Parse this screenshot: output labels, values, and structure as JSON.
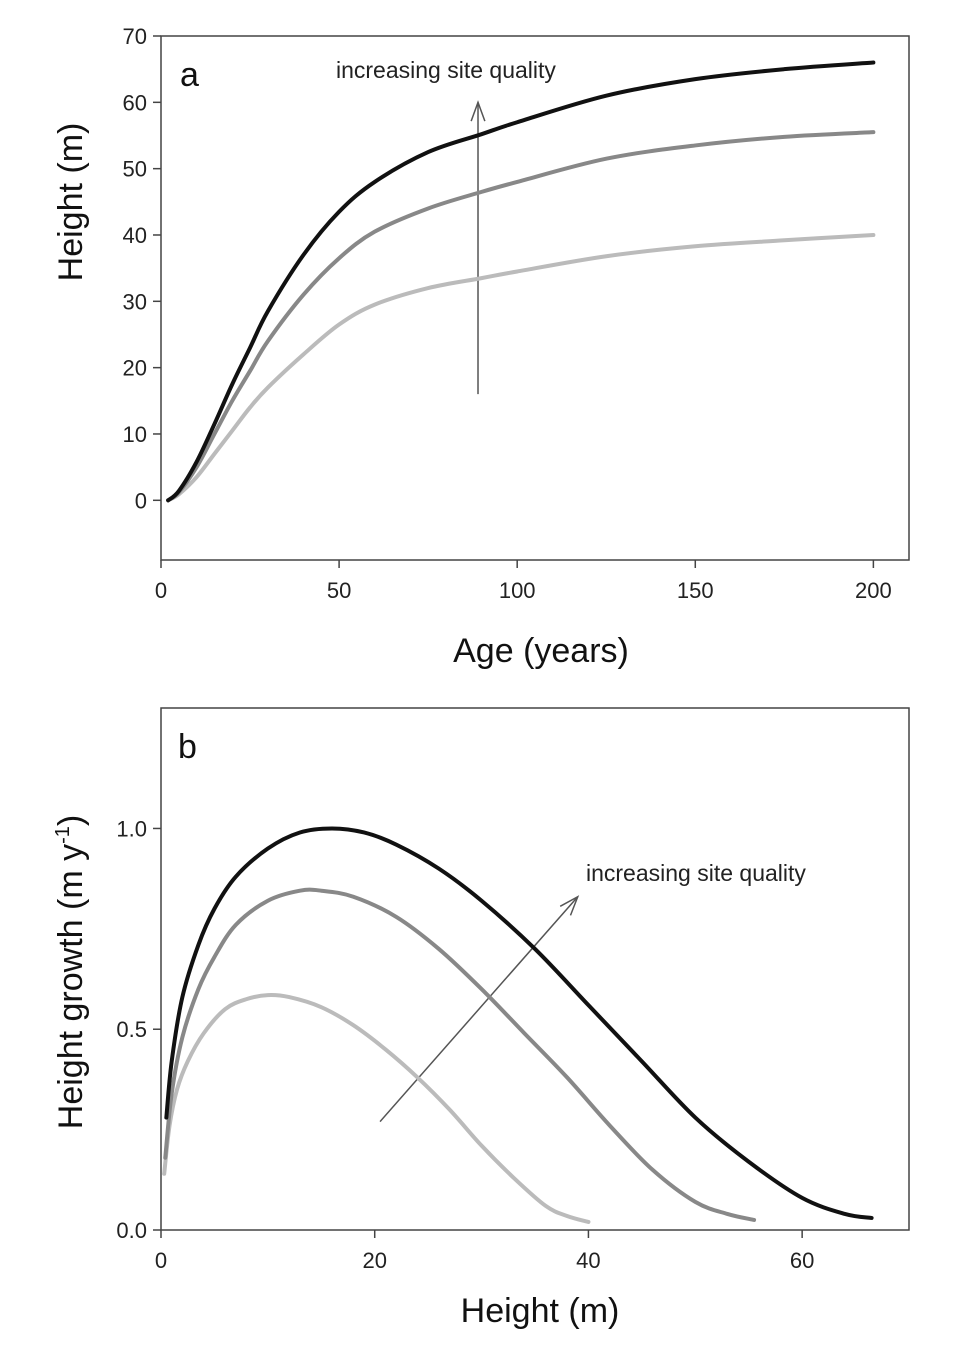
{
  "chart_data": [
    {
      "type": "line",
      "panel_label": "a",
      "xlabel": "Age (years)",
      "ylabel": "Height (m)",
      "xlim": [
        0,
        210
      ],
      "ylim": [
        -9,
        70
      ],
      "xticks": [
        0,
        50,
        100,
        150,
        200
      ],
      "yticks": [
        0,
        10,
        20,
        30,
        40,
        50,
        60,
        70
      ],
      "annotation": {
        "text": "increasing site quality",
        "arrow_from": [
          89,
          16
        ],
        "arrow_to": [
          89,
          60
        ]
      },
      "series": [
        {
          "color": "#bbbbbb",
          "x": [
            2,
            5,
            10,
            15,
            20,
            25,
            30,
            40,
            50,
            60,
            75,
            90,
            100,
            125,
            150,
            175,
            200
          ],
          "y": [
            0,
            0.9,
            3.5,
            7.0,
            10.5,
            14.0,
            17.0,
            22.0,
            26.5,
            29.5,
            32.0,
            33.5,
            34.5,
            36.8,
            38.3,
            39.2,
            40.0
          ]
        },
        {
          "color": "#888888",
          "x": [
            2,
            5,
            10,
            15,
            20,
            25,
            30,
            40,
            50,
            60,
            75,
            90,
            100,
            125,
            150,
            175,
            200
          ],
          "y": [
            0,
            1.2,
            5.0,
            10.0,
            15.0,
            19.5,
            24.0,
            31.0,
            36.5,
            40.5,
            44.0,
            46.5,
            48.0,
            51.5,
            53.5,
            54.8,
            55.5
          ]
        },
        {
          "color": "#111111",
          "x": [
            2,
            5,
            10,
            15,
            20,
            25,
            30,
            40,
            50,
            60,
            75,
            90,
            100,
            125,
            150,
            175,
            200
          ],
          "y": [
            0,
            1.4,
            5.8,
            11.5,
            17.5,
            23.0,
            28.5,
            37.0,
            43.5,
            48.0,
            52.5,
            55.2,
            57.0,
            61.0,
            63.5,
            65.0,
            66.0
          ]
        }
      ]
    },
    {
      "type": "line",
      "panel_label": "b",
      "xlabel": "Height (m)",
      "ylabel": "Height growth (m y",
      "ylabel_sup": "-1",
      "ylabel_end": ")",
      "xlim": [
        0,
        70
      ],
      "ylim": [
        0,
        1.3
      ],
      "xticks": [
        0,
        20,
        40,
        60
      ],
      "yticks": [
        0.0,
        0.5,
        1.0
      ],
      "ytick_labels": [
        "0.0",
        "0.5",
        "1.0"
      ],
      "annotation": {
        "text": "increasing site quality",
        "arrow_from": [
          20.5,
          0.27
        ],
        "arrow_to": [
          39,
          0.83
        ]
      },
      "series": [
        {
          "color": "#bbbbbb",
          "x": [
            0.3,
            0.8,
            1.5,
            2.5,
            4,
            6,
            8,
            10,
            12,
            15,
            18,
            21,
            24,
            27,
            30,
            33,
            36,
            38,
            40
          ],
          "y": [
            0.14,
            0.26,
            0.35,
            0.42,
            0.49,
            0.55,
            0.575,
            0.585,
            0.58,
            0.555,
            0.51,
            0.45,
            0.38,
            0.3,
            0.21,
            0.13,
            0.06,
            0.035,
            0.02
          ]
        },
        {
          "color": "#888888",
          "x": [
            0.4,
            1,
            2,
            3.5,
            5,
            7,
            10,
            13,
            15,
            18,
            22,
            26,
            30,
            34,
            38,
            42,
            46,
            50,
            53,
            55.5
          ],
          "y": [
            0.18,
            0.34,
            0.48,
            0.6,
            0.68,
            0.76,
            0.82,
            0.845,
            0.845,
            0.83,
            0.78,
            0.7,
            0.6,
            0.49,
            0.38,
            0.26,
            0.15,
            0.07,
            0.04,
            0.025
          ]
        },
        {
          "color": "#111111",
          "x": [
            0.5,
            1,
            2,
            3.5,
            5,
            7,
            10,
            13,
            16,
            19,
            22,
            26,
            30,
            35,
            40,
            45,
            50,
            55,
            60,
            64,
            66.5
          ],
          "y": [
            0.28,
            0.42,
            0.58,
            0.71,
            0.8,
            0.88,
            0.95,
            0.99,
            1.0,
            0.99,
            0.96,
            0.9,
            0.82,
            0.7,
            0.56,
            0.42,
            0.28,
            0.17,
            0.08,
            0.04,
            0.03
          ]
        }
      ]
    }
  ]
}
